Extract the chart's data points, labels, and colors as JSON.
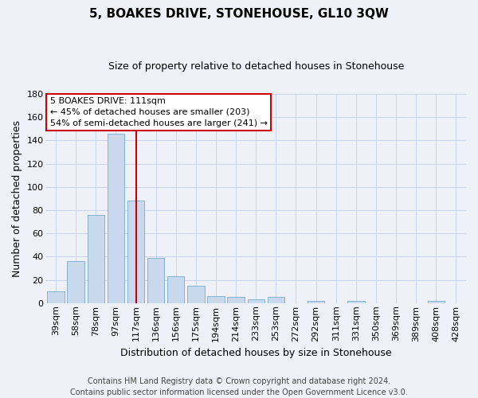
{
  "title": "5, BOAKES DRIVE, STONEHOUSE, GL10 3QW",
  "subtitle": "Size of property relative to detached houses in Stonehouse",
  "xlabel": "Distribution of detached houses by size in Stonehouse",
  "ylabel": "Number of detached properties",
  "footer_line1": "Contains HM Land Registry data © Crown copyright and database right 2024.",
  "footer_line2": "Contains public sector information licensed under the Open Government Licence v3.0.",
  "bin_labels": [
    "39sqm",
    "58sqm",
    "78sqm",
    "97sqm",
    "117sqm",
    "136sqm",
    "156sqm",
    "175sqm",
    "194sqm",
    "214sqm",
    "233sqm",
    "253sqm",
    "272sqm",
    "292sqm",
    "311sqm",
    "331sqm",
    "350sqm",
    "369sqm",
    "389sqm",
    "408sqm",
    "428sqm"
  ],
  "bar_heights": [
    10,
    36,
    76,
    146,
    88,
    39,
    23,
    15,
    6,
    5,
    3,
    5,
    0,
    2,
    0,
    2,
    0,
    0,
    0,
    2,
    0
  ],
  "bar_color": "#c8d8ed",
  "bar_edge_color": "#7aaac8",
  "grid_color": "#c8d4e8",
  "background_color": "#eef2f8",
  "red_line_index": 4,
  "annotation_text": "5 BOAKES DRIVE: 111sqm\n← 45% of detached houses are smaller (203)\n54% of semi-detached houses are larger (241) →",
  "annotation_box_color": "#ffffff",
  "annotation_border_color": "#cc0000",
  "ylim": [
    0,
    180
  ],
  "yticks": [
    0,
    20,
    40,
    60,
    80,
    100,
    120,
    140,
    160,
    180
  ],
  "title_fontsize": 11,
  "subtitle_fontsize": 9,
  "ylabel_fontsize": 9,
  "xlabel_fontsize": 9,
  "tick_fontsize": 8,
  "annotation_fontsize": 8,
  "footer_fontsize": 7
}
